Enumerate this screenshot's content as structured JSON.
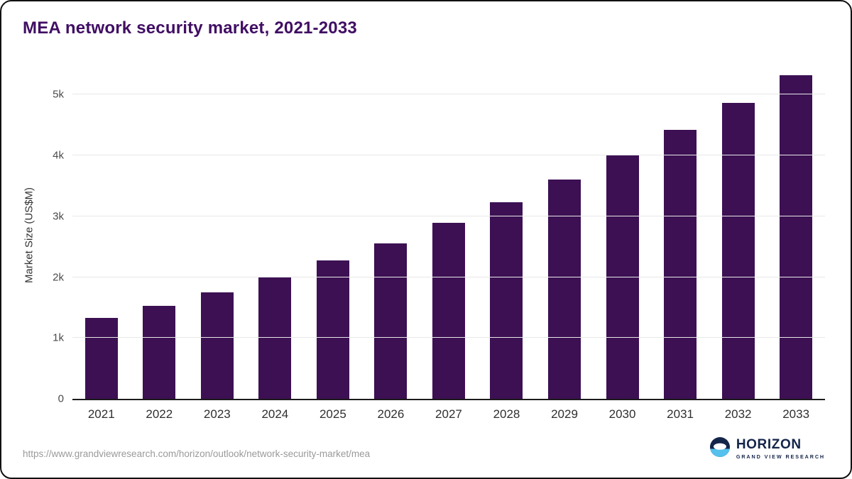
{
  "page": {
    "title": "MEA network security market, 2021-2033",
    "source_url": "https://www.grandviewresearch.com/horizon/outlook/network-security-market/mea"
  },
  "logo": {
    "name": "HORIZON",
    "subtitle": "GRAND VIEW RESEARCH"
  },
  "colors": {
    "bar": "#3c1053",
    "title": "#400e63",
    "logo_navy": "#14254a",
    "logo_blue": "#55c1ec",
    "gridline": "#e8e8e8"
  },
  "chart_data": {
    "type": "bar",
    "title": "MEA network security market, 2021-2033",
    "categories": [
      "2021",
      "2022",
      "2023",
      "2024",
      "2025",
      "2026",
      "2027",
      "2028",
      "2029",
      "2030",
      "2031",
      "2032",
      "2033"
    ],
    "values": [
      1330,
      1530,
      1750,
      2000,
      2270,
      2560,
      2890,
      3230,
      3600,
      4010,
      4420,
      4860,
      5320
    ],
    "xlabel": "",
    "ylabel": "Market Size (US$M)",
    "ylim": [
      0,
      5400
    ],
    "yticks": [
      {
        "value": 0,
        "label": "0"
      },
      {
        "value": 1000,
        "label": "1k"
      },
      {
        "value": 2000,
        "label": "2k"
      },
      {
        "value": 3000,
        "label": "3k"
      },
      {
        "value": 4000,
        "label": "4k"
      },
      {
        "value": 5000,
        "label": "5k"
      }
    ],
    "bar_color": "#3c1053",
    "grid": true,
    "legend": false
  }
}
